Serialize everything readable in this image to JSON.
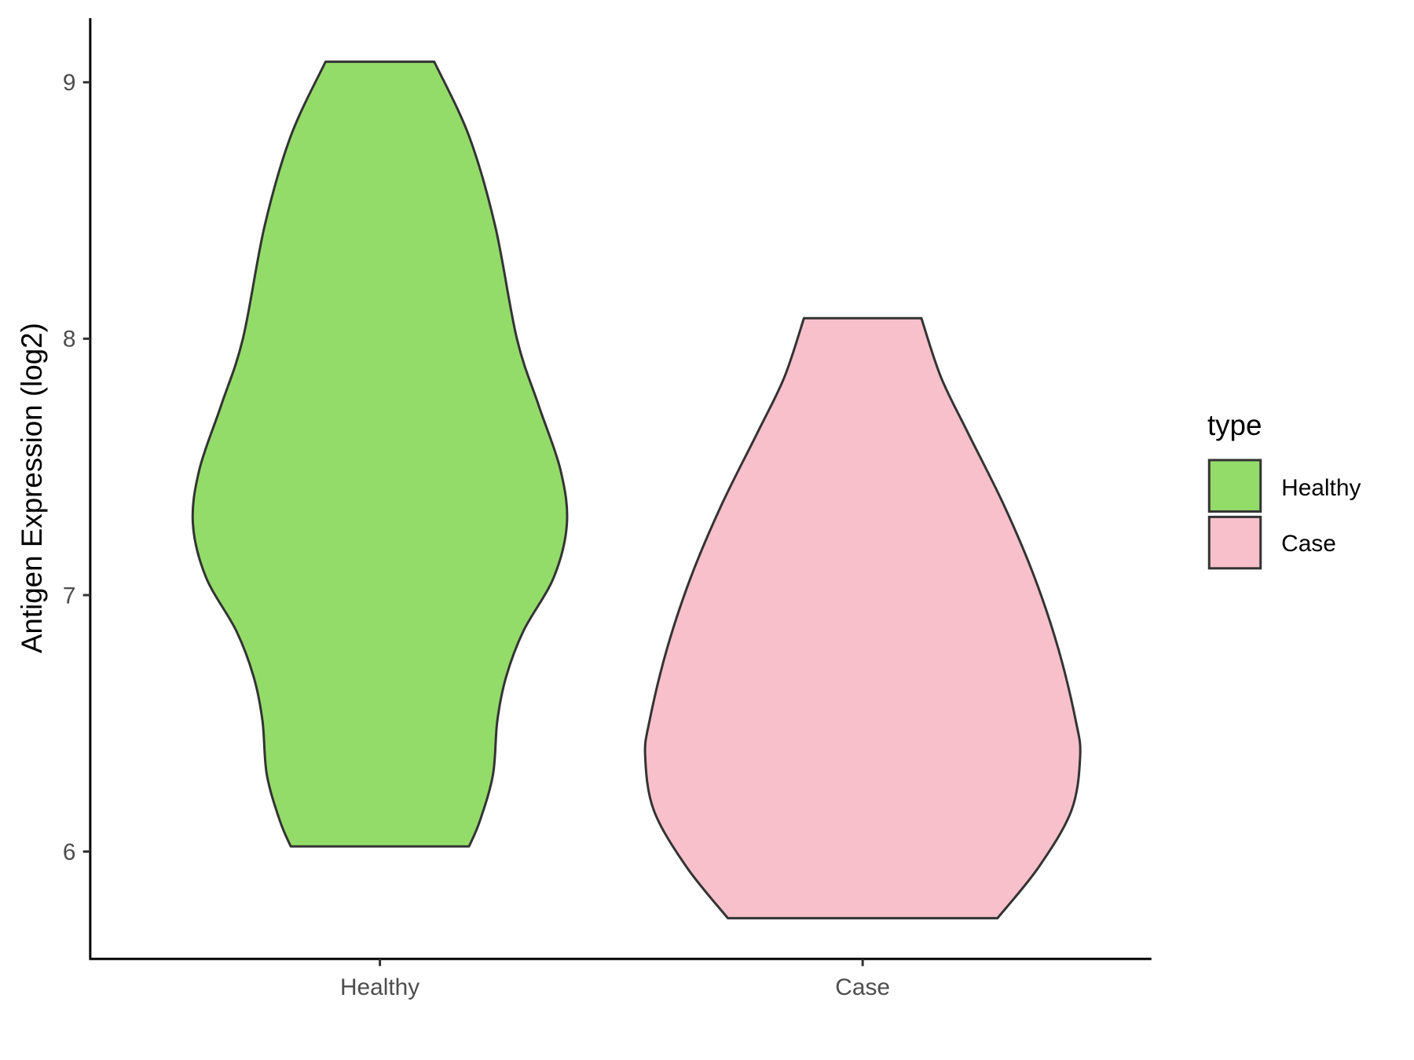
{
  "chart_data": {
    "type": "violin",
    "title": "",
    "xlabel": "",
    "ylabel": "Antigen Expression (log2)",
    "categories": [
      "Healthy",
      "Case"
    ],
    "yticks": [
      6,
      7,
      8,
      9
    ],
    "ytick_labels": [
      "6",
      "7",
      "8",
      "9"
    ],
    "ylim": [
      5.63,
      9.25
    ],
    "grid": false,
    "legend": {
      "title": "type",
      "position": "right",
      "entries": [
        "Healthy",
        "Case"
      ]
    },
    "colors": {
      "Healthy": "#93DC6A",
      "Case": "#F8C0CB",
      "outline": "#333333"
    },
    "series": [
      {
        "name": "Healthy",
        "min": 6.02,
        "max": 9.08,
        "density_profile": [
          [
            6.02,
            0.41
          ],
          [
            6.12,
            0.46
          ],
          [
            6.3,
            0.52
          ],
          [
            6.51,
            0.54
          ],
          [
            6.68,
            0.58
          ],
          [
            6.86,
            0.66
          ],
          [
            7.07,
            0.8
          ],
          [
            7.28,
            0.86
          ],
          [
            7.49,
            0.83
          ],
          [
            7.74,
            0.73
          ],
          [
            8.0,
            0.63
          ],
          [
            8.44,
            0.53
          ],
          [
            8.79,
            0.41
          ],
          [
            9.08,
            0.25
          ]
        ]
      },
      {
        "name": "Case",
        "min": 5.74,
        "max": 8.08,
        "density_profile": [
          [
            5.74,
            0.62
          ],
          [
            5.94,
            0.81
          ],
          [
            6.16,
            0.96
          ],
          [
            6.37,
            1.0
          ],
          [
            6.51,
            0.98
          ],
          [
            6.79,
            0.9
          ],
          [
            7.07,
            0.79
          ],
          [
            7.35,
            0.65
          ],
          [
            7.64,
            0.48
          ],
          [
            7.85,
            0.36
          ],
          [
            8.08,
            0.27
          ]
        ]
      }
    ]
  }
}
